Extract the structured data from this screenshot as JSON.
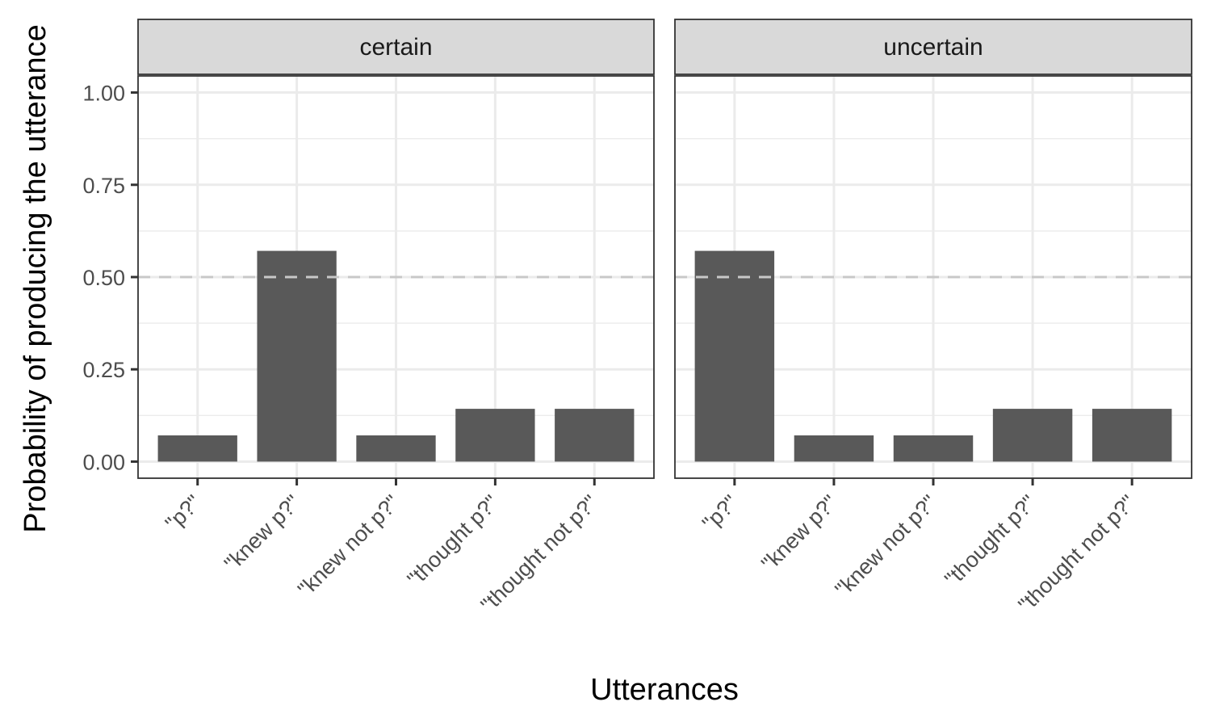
{
  "chart_data": {
    "type": "bar",
    "xlabel": "Utterances",
    "ylabel": "Probability of producing the utterance",
    "ylim": [
      -0.045,
      1.045
    ],
    "yticks": [
      0,
      0.25,
      0.5,
      0.75,
      1
    ],
    "ytick_labels": [
      "0.00",
      "0.25",
      "0.50",
      "0.75",
      "1.00"
    ],
    "reference_line": {
      "y": 0.5,
      "style": "dashed",
      "color": "#c8c8c8"
    },
    "categories": [
      "\"p?\"",
      "\"knew p?\"",
      "\"knew not p?\"",
      "\"thought p?\"",
      "\"thought not p?\""
    ],
    "panels": [
      {
        "name": "certain",
        "values": [
          0.071,
          0.571,
          0.071,
          0.143,
          0.143
        ]
      },
      {
        "name": "uncertain",
        "values": [
          0.571,
          0.071,
          0.071,
          0.143,
          0.143
        ]
      }
    ],
    "colors": {
      "bar": "#595959",
      "grid": "#ebebeb",
      "strip_fill": "#d9d9d9",
      "panel_border": "#333333"
    },
    "grid": true,
    "legend": "none"
  }
}
